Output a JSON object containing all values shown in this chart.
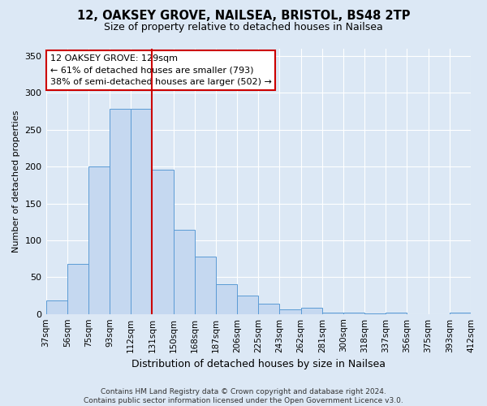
{
  "title": "12, OAKSEY GROVE, NAILSEA, BRISTOL, BS48 2TP",
  "subtitle": "Size of property relative to detached houses in Nailsea",
  "xlabel": "Distribution of detached houses by size in Nailsea",
  "ylabel": "Number of detached properties",
  "bar_values": [
    18,
    68,
    200,
    278,
    278,
    196,
    114,
    78,
    40,
    25,
    14,
    6,
    8,
    2,
    2,
    1,
    2,
    0,
    0,
    2
  ],
  "bin_labels": [
    "37sqm",
    "56sqm",
    "75sqm",
    "93sqm",
    "112sqm",
    "131sqm",
    "150sqm",
    "168sqm",
    "187sqm",
    "206sqm",
    "225sqm",
    "243sqm",
    "262sqm",
    "281sqm",
    "300sqm",
    "318sqm",
    "337sqm",
    "356sqm",
    "375sqm",
    "393sqm",
    "412sqm"
  ],
  "bar_color": "#c5d8f0",
  "bar_edge_color": "#5b9bd5",
  "property_line_color": "#cc0000",
  "property_line_bar_index": 4,
  "annotation_title": "12 OAKSEY GROVE: 129sqm",
  "annotation_line1": "← 61% of detached houses are smaller (793)",
  "annotation_line2": "38% of semi-detached houses are larger (502) →",
  "annotation_box_color": "#ffffff",
  "annotation_box_edge_color": "#cc0000",
  "ylim": [
    0,
    360
  ],
  "yticks": [
    0,
    50,
    100,
    150,
    200,
    250,
    300,
    350
  ],
  "footer_line1": "Contains HM Land Registry data © Crown copyright and database right 2024.",
  "footer_line2": "Contains public sector information licensed under the Open Government Licence v3.0.",
  "bg_color": "#dce8f5",
  "grid_color": "#ffffff",
  "title_fontsize": 10.5,
  "subtitle_fontsize": 9,
  "ylabel_fontsize": 8,
  "xlabel_fontsize": 9,
  "tick_fontsize": 7.5,
  "annotation_fontsize": 8,
  "footer_fontsize": 6.5
}
